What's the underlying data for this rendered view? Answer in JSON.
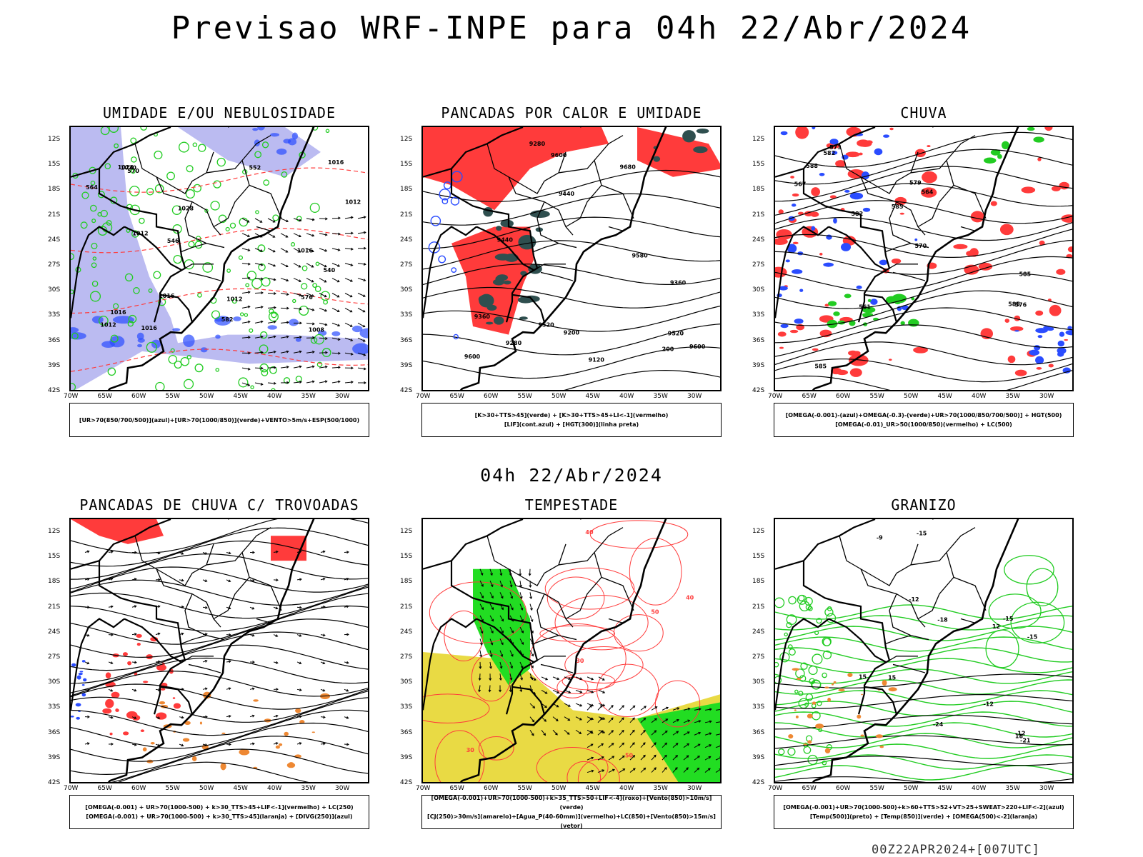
{
  "title": "Previsao WRF-INPE  para 04h 22/Abr/2024",
  "mid_date": "04h 22/Abr/2024",
  "footer": "00Z22APR2024+[007UTC]",
  "axes": {
    "lat_labels": [
      "12S",
      "15S",
      "18S",
      "21S",
      "24S",
      "27S",
      "30S",
      "33S",
      "36S",
      "39S",
      "42S"
    ],
    "lon_labels": [
      "70W",
      "65W",
      "60W",
      "55W",
      "50W",
      "45W",
      "40W",
      "35W",
      "30W"
    ]
  },
  "colors": {
    "blue": "#2a4cff",
    "lavender": "#b4b4f0",
    "green": "#22cc22",
    "red": "#ff3b3b",
    "dark_teal": "#2f4f4f",
    "orange": "#ee8833",
    "yellow": "#e8d83a",
    "bright_green": "#22dd22"
  },
  "panels": [
    {
      "id": "umidade",
      "title": "UMIDADE E/OU NEBULOSIDADE",
      "legend": [
        "[UR>70(850/700/500)](azul)+[UR>70(1000/850)](verde)+VENTO>5m/s+ESP(500/1000)"
      ],
      "contour_labels": [
        "1012",
        "1012",
        "1016",
        "1016",
        "1016",
        "1020",
        "1008",
        "1016",
        "1012",
        "1016",
        "570",
        "576",
        "564",
        "552",
        "546",
        "540",
        "582",
        "1028",
        "1024",
        "1012"
      ]
    },
    {
      "id": "pancadas_calor",
      "title": "PANCADAS POR CALOR E UMIDADE",
      "legend": [
        "[K>30+TTS>45](verde) + [K>30+TTS>45+LI<-1](vermelho)",
        "[LIF](cont.azul) + [HGT(300)](linha preta)"
      ],
      "contour_labels": [
        "9680",
        "9580",
        "9600",
        "9600",
        "9600",
        "9520",
        "9520",
        "9440",
        "9440",
        "9360",
        "9360",
        "9280",
        "9280",
        "9200",
        "9120",
        "200"
      ]
    },
    {
      "id": "chuva",
      "title": "CHUVA",
      "legend": [
        "[OMEGA(-0.001)-(azul)+OMEGA(-0.3)-(verde)+UR>70(1000/850/700/500)] + HGT(500)",
        "[OMEGA(-0.01)_UR>50(1000/850)(vermelho) + LC(500)"
      ],
      "contour_labels": [
        "585",
        "585",
        "585",
        "585",
        "582",
        "582",
        "579",
        "576",
        "573",
        "570",
        "567",
        "564",
        "561",
        "588"
      ]
    },
    {
      "id": "trovoadas",
      "title": "PANCADAS DE CHUVA C/ TROVOADAS",
      "legend": [
        "[OMEGA(-0.001) + UR>70(1000-500) + k>30_TTS>45+LIF<-1](vermelho) + LC(250)",
        "[OMEGA(-0.001) + UR>70(1000-500) + k>30_TTS>45](laranja) + [DIVG(250)](azul)"
      ]
    },
    {
      "id": "tempestade",
      "title": "TEMPESTADE",
      "legend": [
        "[OMEGA(-0.001)+UR>70(1000-500)+k>35_TTS>50+LIF<-4](roxo)+[Vento(850)>10m/s](verde)",
        "[CJ(250)>30m/s](amarelo)+[Agua_P(40-60mm)](vermelho)+LC(850)+[Vento(850)>15m/s](vetor)"
      ],
      "contour_labels": [
        "50",
        "50",
        "40",
        "40",
        "30",
        "30"
      ]
    },
    {
      "id": "granizo",
      "title": "GRANIZO",
      "legend": [
        "[OMEGA(-0.001)+UR>70(1000-500)+k>60+TTS>52+VT>25+SWEAT>220+LIF<-2](azul)",
        "[Temp(500)](preto) + [Temp(850)](verde) + [OMEGA(500)<-2](laranja)"
      ],
      "contour_labels": [
        "-9",
        "-12",
        "-12",
        "-12",
        "-15",
        "-15",
        "-15",
        "-18",
        "-21",
        "-24",
        "12",
        "15",
        "15",
        "18"
      ]
    }
  ]
}
